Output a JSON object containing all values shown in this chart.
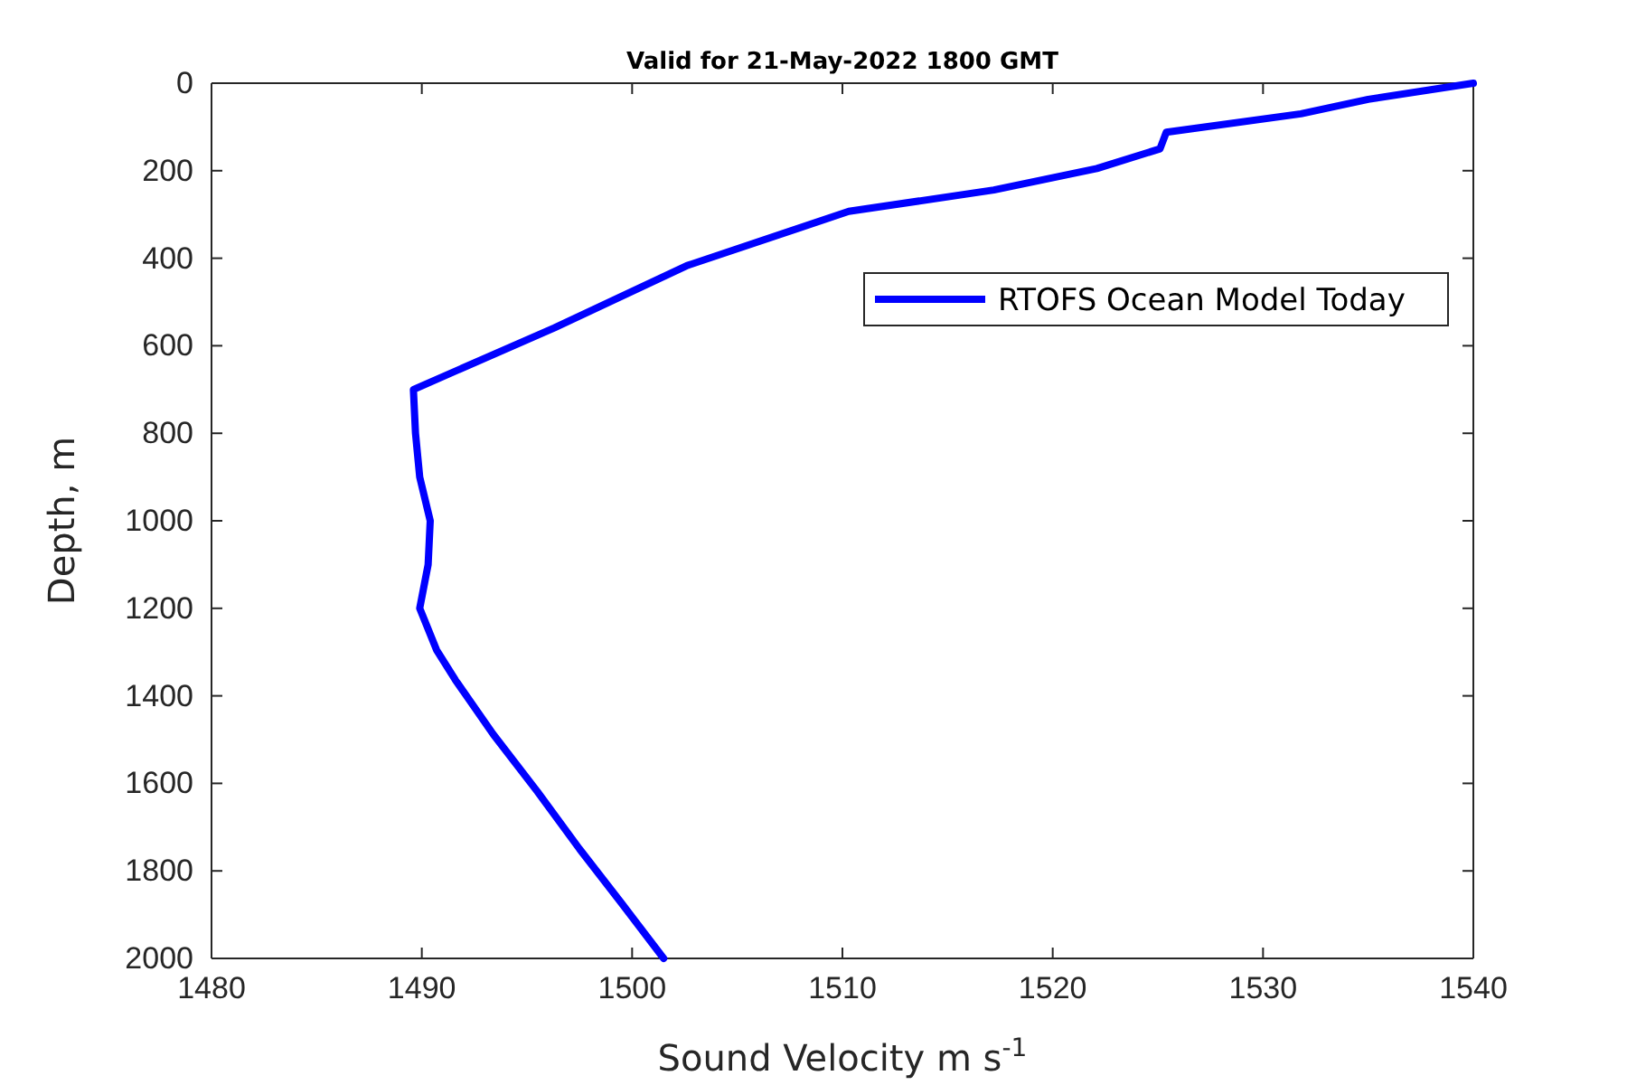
{
  "chart_data": {
    "type": "line",
    "title": "Valid for 21-May-2022 1800 GMT",
    "xlabel": "Sound Velocity m s$^{-1}$",
    "ylabel": "Depth, m",
    "xlim": [
      1480,
      1540
    ],
    "xticks": [
      1480,
      1490,
      1500,
      1510,
      1520,
      1530,
      1540
    ],
    "ylim": [
      2000,
      0
    ],
    "yticks": [
      0,
      200,
      400,
      600,
      800,
      1000,
      1200,
      1400,
      1600,
      1800,
      2000
    ],
    "grid": false,
    "legend": "top right",
    "line_style": "solid",
    "marker": "none",
    "series": [
      {
        "name": "RTOFS Ocean Model Today",
        "color": "#0000ff",
        "x": [
          1540,
          1535.0,
          1531.8,
          1525.4,
          1525.1,
          1522.1,
          1517.2,
          1510.3,
          1502.6,
          1496.3,
          1489.6,
          1489.7,
          1489.9,
          1490.4,
          1490.3,
          1489.9,
          1490.7,
          1491.6,
          1493.4,
          1495.5,
          1497.5,
          1499.5,
          1501.5
        ],
        "values": [
          0,
          37,
          70,
          112,
          150,
          195,
          244,
          293,
          417,
          559,
          700,
          800,
          900,
          1000,
          1100,
          1200,
          1295,
          1364,
          1488,
          1619,
          1750,
          1874,
          2000
        ]
      }
    ]
  }
}
